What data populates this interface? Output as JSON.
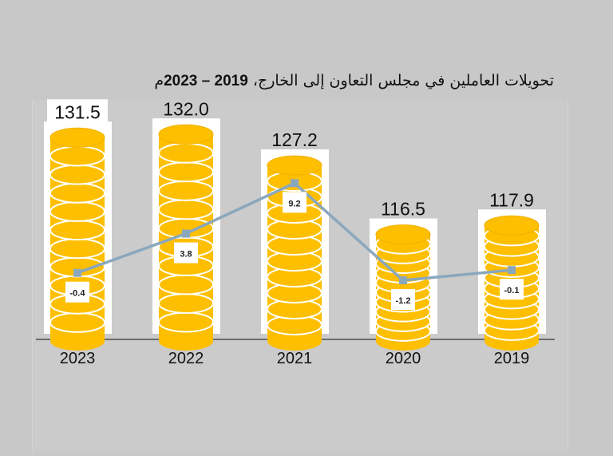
{
  "chart_data": {
    "type": "bar",
    "title": "تحويلات العاملين في مجلس التعاون إلى الخارج، 2019 – 2023م",
    "title_parts": {
      "text": "تحويلات العاملين في مجلس التعاون إلى الخارج، ",
      "years": "2019 – 2023",
      "suffix": "م"
    },
    "categories": [
      "2023",
      "2022",
      "2021",
      "2020",
      "2019"
    ],
    "series": [
      {
        "type": "bar",
        "values": [
          131.5,
          132.0,
          127.2,
          116.5,
          117.9
        ],
        "labels": [
          "131.5",
          "132.0",
          "127.2",
          "116.5",
          "117.9"
        ],
        "color": "#fdbf00"
      },
      {
        "type": "line",
        "values": [
          -0.4,
          3.8,
          9.2,
          -1.2,
          -0.1
        ],
        "labels": [
          "-0.4",
          "3.8",
          "9.2",
          "-1.2",
          "-0.1"
        ],
        "color": "#8aa7bd"
      }
    ],
    "bar_ylim": [
      100,
      135
    ],
    "line_ylim": [
      -2,
      10
    ],
    "grid": false,
    "legend": "none",
    "background": "#c8c8c8"
  }
}
